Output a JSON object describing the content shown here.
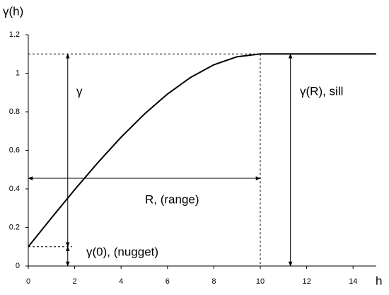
{
  "chart_data": {
    "type": "line",
    "y_label": "γ(h)",
    "x_label": "h",
    "x": [
      0,
      1,
      2,
      3,
      4,
      5,
      6,
      7,
      8,
      9,
      10,
      15
    ],
    "series": [
      {
        "color": "#000000",
        "values": [
          0.1,
          0.2495,
          0.396,
          0.5365,
          0.668,
          0.7875,
          0.892,
          0.9785,
          1.044,
          1.0855,
          1.1,
          1.1
        ]
      }
    ],
    "xlim": [
      0,
      15
    ],
    "ylim": [
      0,
      1.2
    ],
    "xticks": [
      0,
      2,
      4,
      6,
      8,
      10,
      12,
      14
    ],
    "yticks": [
      0,
      0.2,
      0.4,
      0.6,
      0.8,
      1,
      1.2
    ],
    "annotations": {
      "gamma": "γ",
      "sill": "γ(R), sill",
      "range": "R, (range)",
      "nugget": "γ(0), (nugget)"
    }
  }
}
